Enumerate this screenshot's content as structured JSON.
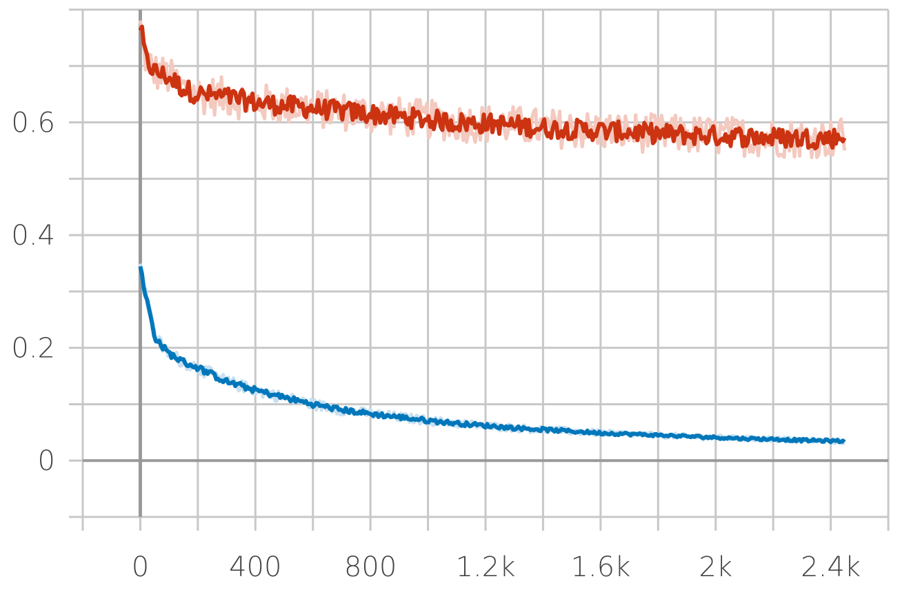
{
  "chart_data": {
    "type": "line",
    "title": "",
    "xlabel": "",
    "ylabel": "",
    "xlim": [
      -200,
      2600
    ],
    "ylim": [
      -0.1,
      0.8
    ],
    "x_ticks": [
      0,
      400,
      800,
      1200,
      1600,
      2000,
      2400
    ],
    "x_tick_labels": [
      "0",
      "400",
      "800",
      "1.2k",
      "1.6k",
      "2k",
      "2.4k"
    ],
    "y_ticks": [
      0,
      0.2,
      0.4,
      0.6
    ],
    "y_tick_labels": [
      "0",
      "0.2",
      "0.4",
      "0.6"
    ],
    "grid": true,
    "legend": "none",
    "colors": {
      "grid": "#c8c8c8",
      "zero_axis": "#999999",
      "red_smooth": "#cc3311",
      "red_raw": "#f4c9bf",
      "blue_smooth": "#0077bb",
      "blue_raw": "#c8e0f0"
    },
    "series": [
      {
        "color": "#cc3311",
        "raw_color": "#f4c9bf",
        "x": [
          0,
          20,
          50,
          100,
          150,
          200,
          300,
          400,
          500,
          600,
          700,
          800,
          900,
          1000,
          1100,
          1200,
          1300,
          1400,
          1500,
          1600,
          1700,
          1800,
          1900,
          2000,
          2100,
          2200,
          2300,
          2400,
          2450
        ],
        "values": [
          0.77,
          0.71,
          0.69,
          0.68,
          0.66,
          0.65,
          0.645,
          0.635,
          0.63,
          0.625,
          0.62,
          0.615,
          0.61,
          0.605,
          0.6,
          0.598,
          0.595,
          0.59,
          0.588,
          0.585,
          0.583,
          0.58,
          0.578,
          0.576,
          0.575,
          0.573,
          0.572,
          0.572,
          0.575
        ]
      },
      {
        "color": "#0077bb",
        "raw_color": "#c8e0f0",
        "x": [
          0,
          10,
          30,
          50,
          80,
          100,
          150,
          200,
          300,
          400,
          500,
          600,
          700,
          800,
          900,
          1000,
          1100,
          1200,
          1300,
          1400,
          1500,
          1600,
          1700,
          1800,
          1900,
          2000,
          2100,
          2200,
          2300,
          2400,
          2450
        ],
        "values": [
          0.35,
          0.31,
          0.27,
          0.22,
          0.2,
          0.19,
          0.175,
          0.165,
          0.14,
          0.125,
          0.112,
          0.1,
          0.09,
          0.083,
          0.077,
          0.071,
          0.066,
          0.062,
          0.058,
          0.055,
          0.052,
          0.049,
          0.047,
          0.045,
          0.043,
          0.041,
          0.039,
          0.038,
          0.036,
          0.035,
          0.034
        ]
      }
    ]
  }
}
